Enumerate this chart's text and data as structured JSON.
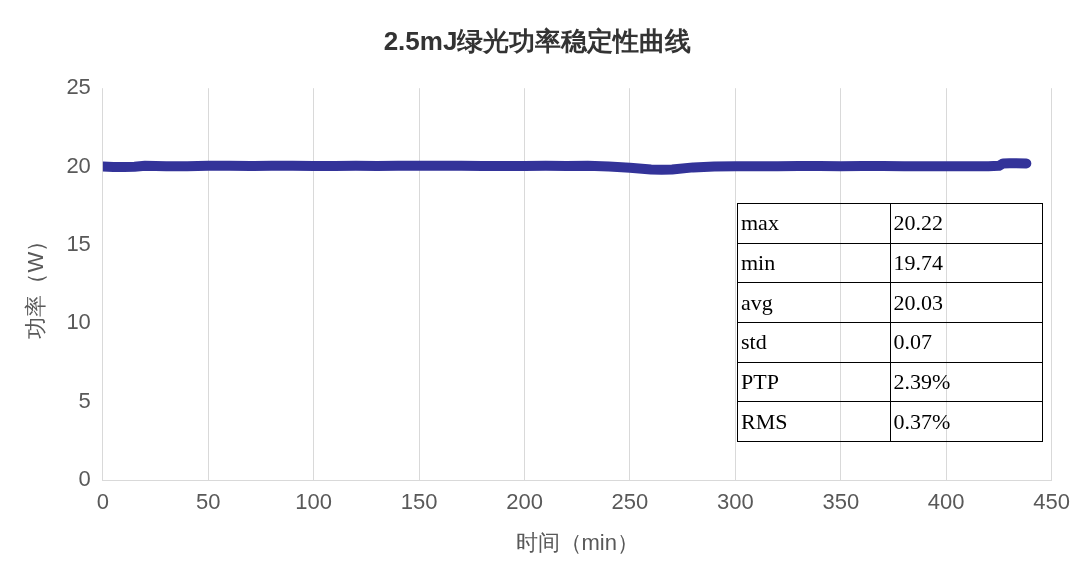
{
  "chart_data": {
    "type": "line",
    "title": "2.5mJ绿光功率稳定性曲线",
    "xlabel": "时间（min）",
    "ylabel": "功率（W）",
    "series": [
      {
        "color": "#333399",
        "x": [
          0,
          5,
          10,
          15,
          20,
          30,
          40,
          50,
          60,
          70,
          80,
          90,
          100,
          110,
          120,
          130,
          140,
          150,
          160,
          170,
          180,
          190,
          200,
          210,
          220,
          230,
          240,
          250,
          260,
          265,
          270,
          280,
          290,
          300,
          310,
          320,
          330,
          340,
          350,
          360,
          370,
          380,
          390,
          400,
          410,
          420,
          425,
          427,
          430,
          438
        ],
        "values": [
          20.0,
          19.97,
          19.97,
          19.99,
          20.05,
          20.02,
          20.03,
          20.05,
          20.05,
          20.04,
          20.05,
          20.05,
          20.04,
          20.04,
          20.05,
          20.04,
          20.05,
          20.05,
          20.05,
          20.06,
          20.04,
          20.04,
          20.04,
          20.05,
          20.04,
          20.05,
          20.0,
          19.93,
          19.82,
          19.8,
          19.82,
          19.95,
          20.0,
          20.02,
          20.03,
          20.03,
          20.04,
          20.04,
          20.03,
          20.04,
          20.04,
          20.03,
          20.03,
          20.03,
          20.03,
          20.02,
          20.05,
          20.2,
          20.22,
          20.2
        ]
      }
    ],
    "xlim": [
      0,
      450
    ],
    "xticks": [
      0,
      50,
      100,
      150,
      200,
      250,
      300,
      350,
      400,
      450
    ],
    "ylim": [
      0,
      25
    ],
    "yticks": [
      0,
      5,
      10,
      15,
      20,
      25
    ],
    "grid": "x",
    "legend": false,
    "marker": "none",
    "line_style": "solid",
    "annotations": [
      "max",
      "20.22",
      "min",
      "19.74",
      "avg",
      "20.03",
      "std",
      "0.07",
      "PTP",
      "2.39%",
      "RMS",
      "0.37%"
    ]
  }
}
